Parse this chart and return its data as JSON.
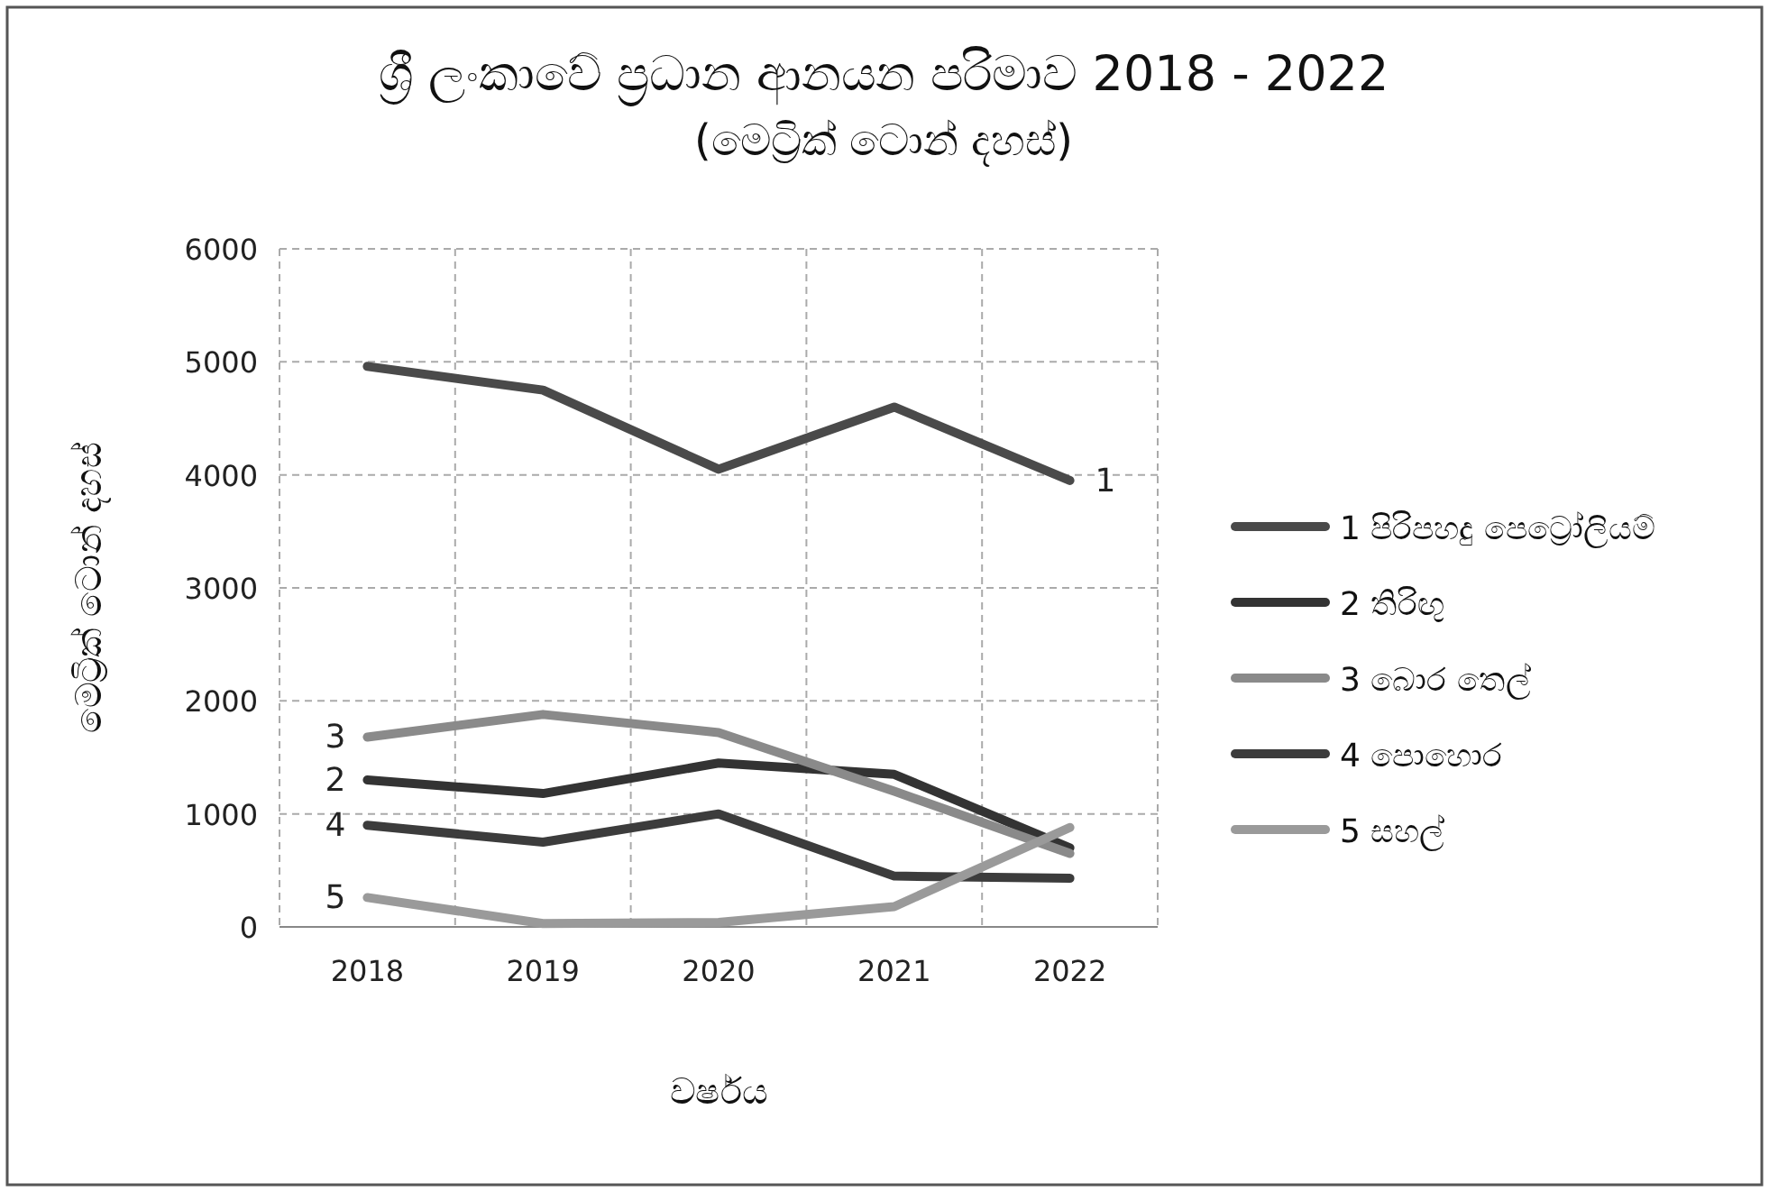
{
  "chart_data": {
    "type": "line",
    "title": "ශ්‍රී ලංකාවේ ප්‍රධාන ආනයන පරිමාව 2018 - 2022",
    "subtitle": "(මෙට්‍රික් ටොන් දහස්)",
    "xlabel": "වර්ෂය",
    "ylabel": "මෙට්‍රික් ටොන් දහස්",
    "categories": [
      "2018",
      "2019",
      "2020",
      "2021",
      "2022"
    ],
    "series": [
      {
        "name": "1 පිරිපහදු පෙට්‍රෝලියම්",
        "color": "#4a4a4a",
        "values": [
          4960,
          4750,
          4050,
          4600,
          3950
        ]
      },
      {
        "name": "2 තිරිඟු",
        "color": "#333333",
        "values": [
          1300,
          1180,
          1450,
          1350,
          700
        ]
      },
      {
        "name": "3 බොර තෙල්",
        "color": "#8a8a8a",
        "values": [
          1680,
          1880,
          1720,
          1200,
          650
        ]
      },
      {
        "name": "4 පොහොර",
        "color": "#3c3c3c",
        "values": [
          900,
          750,
          1000,
          450,
          430
        ]
      },
      {
        "name": "5 සහල්",
        "color": "#9a9a9a",
        "values": [
          260,
          30,
          40,
          180,
          880
        ]
      }
    ],
    "annotations": [
      {
        "text": "1",
        "x": "2022",
        "y": 3950
      },
      {
        "text": "2",
        "x": "2018",
        "y": 1300
      },
      {
        "text": "3",
        "x": "2018",
        "y": 1680
      },
      {
        "text": "4",
        "x": "2018",
        "y": 900
      },
      {
        "text": "5",
        "x": "2018",
        "y": 260
      }
    ],
    "ylim": [
      0,
      6000
    ],
    "yticks": [
      0,
      1000,
      2000,
      3000,
      4000,
      5000,
      6000
    ],
    "grid": true,
    "legend": "right",
    "marker": "none",
    "line_style": "solid"
  }
}
